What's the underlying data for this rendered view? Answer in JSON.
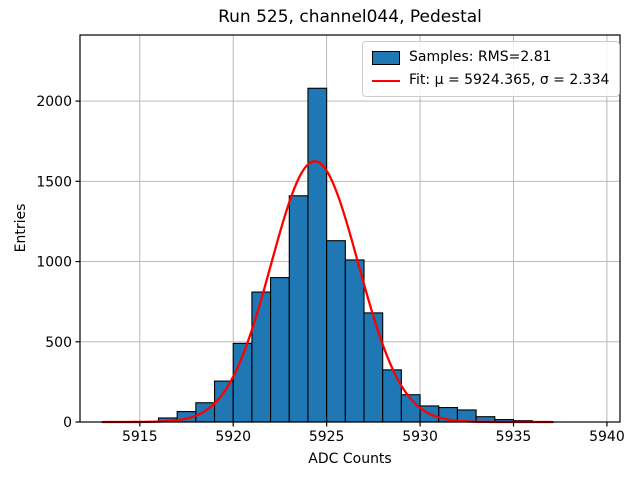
{
  "figure": {
    "title": "Run 525, channel044, Pedestal",
    "xlabel": "ADC Counts",
    "ylabel": "Entries"
  },
  "legend": {
    "items": [
      {
        "swatch": "blue-patch",
        "label": "Samples: RMS=2.81"
      },
      {
        "swatch": "red-line",
        "label": "Fit: μ = 5924.365, σ = 2.334"
      }
    ]
  },
  "chart_data": {
    "type": "bar",
    "title": "Run 525, channel044, Pedestal",
    "xlabel": "ADC Counts",
    "ylabel": "Entries",
    "xlim": [
      5911.8,
      5940.7
    ],
    "ylim": [
      0,
      2412
    ],
    "xticks": [
      5915,
      5920,
      5925,
      5930,
      5935,
      5940
    ],
    "yticks": [
      0,
      500,
      1000,
      1500,
      2000
    ],
    "grid": true,
    "legend_position": "upper right",
    "bin_width": 1,
    "bin_left_edges": [
      5916,
      5917,
      5918,
      5919,
      5920,
      5921,
      5922,
      5923,
      5924,
      5925,
      5926,
      5927,
      5928,
      5929,
      5930,
      5931,
      5932,
      5933,
      5934,
      5935
    ],
    "counts": [
      25,
      65,
      120,
      255,
      490,
      810,
      900,
      1410,
      2080,
      1130,
      1010,
      680,
      325,
      170,
      100,
      90,
      75,
      33,
      15,
      8
    ],
    "series": [
      {
        "name": "Samples: RMS=2.81",
        "type": "histogram",
        "rms": 2.81
      },
      {
        "name": "Fit: μ = 5924.365, σ = 2.334",
        "type": "gaussian-fit"
      }
    ],
    "fit": {
      "mu": 5924.365,
      "sigma": 2.334,
      "amplitude": 1625,
      "x_start": 5913.0,
      "x_end": 5937.1
    },
    "colors": {
      "bar_fill": "#1f77b4",
      "bar_edge": "#000000",
      "fit_line": "#ff0000",
      "grid": "#b0b0b0",
      "spine": "#000000",
      "background": "#ffffff"
    }
  }
}
